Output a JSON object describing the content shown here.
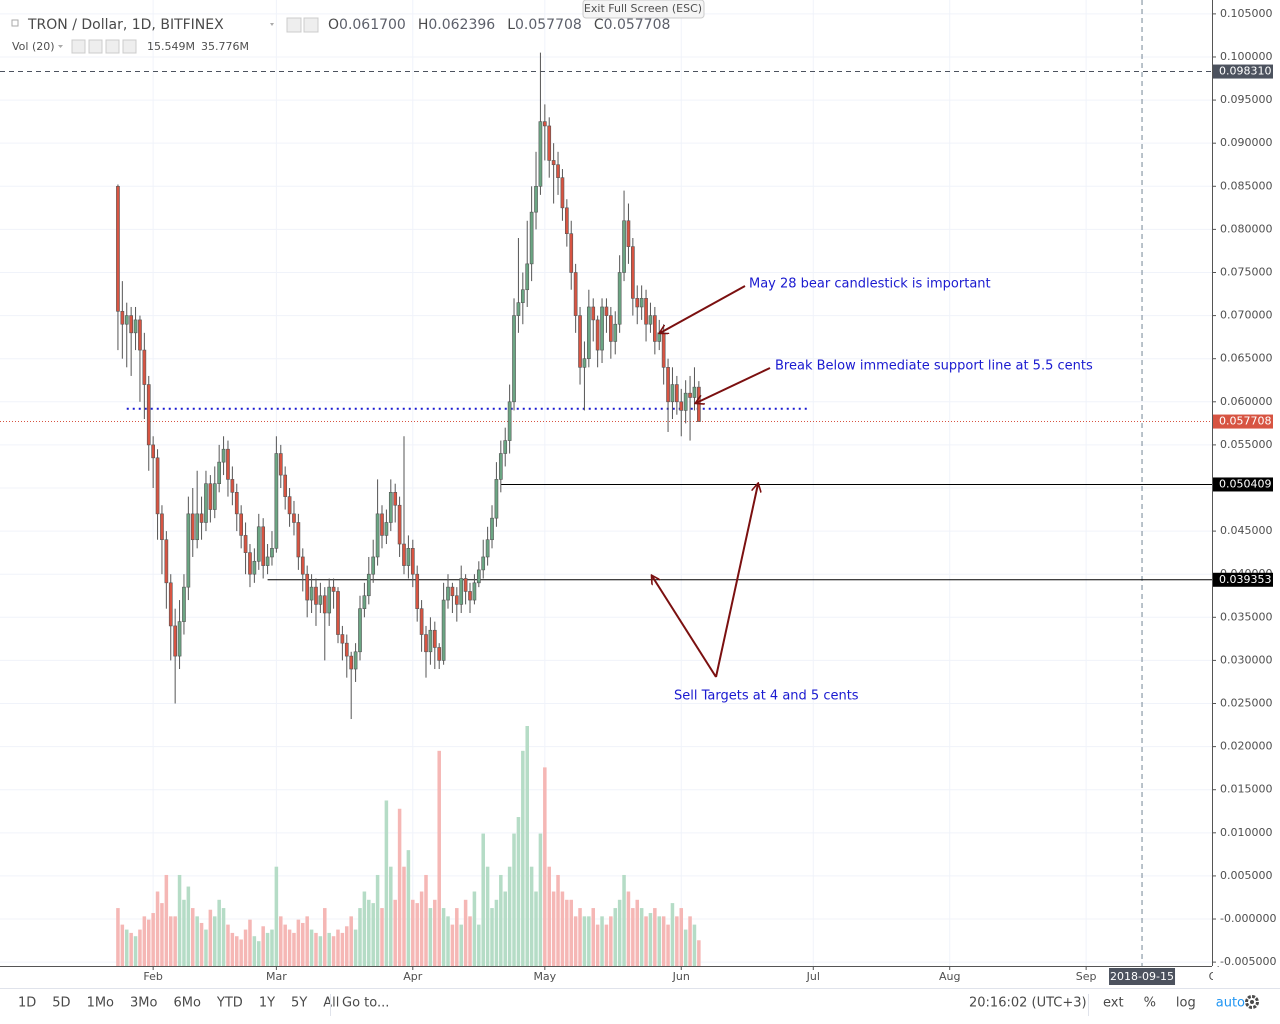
{
  "chart_data": {
    "type": "candlestick",
    "title": "TRON / Dollar, 1D, BITFINEX",
    "ohlc_legend": [
      {
        "label": "O",
        "value": "0.061700"
      },
      {
        "label": "H",
        "value": "0.062396"
      },
      {
        "label": "L",
        "value": "0.057708"
      },
      {
        "label": "C",
        "value": "0.057708"
      }
    ],
    "volume_legend": {
      "label": "Vol (20)",
      "volume": "15.549M",
      "ma": "35.776M"
    },
    "up_color": "#6ba583",
    "down_color": "#d75442",
    "volume_up_color": "#b5dcc6",
    "volume_down_color": "#f5b7b5",
    "open": [
      0.085,
      0.0705,
      0.069,
      0.07,
      0.068,
      0.0695,
      0.066,
      0.062,
      0.055,
      0.0535,
      0.047,
      0.044,
      0.039,
      0.034,
      0.0305,
      0.0345,
      0.0385,
      0.047,
      0.044,
      0.047,
      0.046,
      0.0505,
      0.0475,
      0.0505,
      0.053,
      0.0545,
      0.051,
      0.0495,
      0.047,
      0.0445,
      0.0425,
      0.04,
      0.0415,
      0.0455,
      0.041,
      0.042,
      0.043,
      0.054,
      0.0515,
      0.049,
      0.047,
      0.046,
      0.042,
      0.04,
      0.037,
      0.0385,
      0.0365,
      0.0375,
      0.0355,
      0.0385,
      0.038,
      0.033,
      0.032,
      0.0305,
      0.029,
      0.031,
      0.036,
      0.0375,
      0.04,
      0.042,
      0.047,
      0.0445,
      0.046,
      0.0495,
      0.048,
      0.0435,
      0.041,
      0.043,
      0.04,
      0.036,
      0.033,
      0.031,
      0.0335,
      0.0315,
      0.03,
      0.037,
      0.0385,
      0.0375,
      0.0365,
      0.0395,
      0.038,
      0.037,
      0.039,
      0.0405,
      0.042,
      0.044,
      0.0465,
      0.051,
      0.054,
      0.0555,
      0.06,
      0.07,
      0.0715,
      0.073,
      0.076,
      0.082,
      0.085,
      0.0925,
      0.092,
      0.088,
      0.0875,
      0.086,
      0.0825,
      0.0795,
      0.075,
      0.07,
      0.064,
      0.065,
      0.071,
      0.0695,
      0.066,
      0.071,
      0.07,
      0.067,
      0.069,
      0.075,
      0.081,
      0.078,
      0.072,
      0.071,
      0.072,
      0.069,
      0.07,
      0.067,
      0.068,
      0.064,
      0.06,
      0.062,
      0.06,
      0.059,
      0.061,
      0.0605,
      0.0617
    ],
    "high": [
      0.0852,
      0.074,
      0.0715,
      0.071,
      0.071,
      0.07,
      0.068,
      0.063,
      0.056,
      0.0545,
      0.048,
      0.045,
      0.04,
      0.036,
      0.037,
      0.04,
      0.049,
      0.05,
      0.052,
      0.049,
      0.052,
      0.0515,
      0.0525,
      0.055,
      0.056,
      0.0555,
      0.0525,
      0.0505,
      0.048,
      0.046,
      0.0435,
      0.043,
      0.047,
      0.0465,
      0.0435,
      0.045,
      0.056,
      0.055,
      0.0525,
      0.05,
      0.0485,
      0.047,
      0.043,
      0.041,
      0.04,
      0.0395,
      0.039,
      0.0385,
      0.0395,
      0.0395,
      0.0385,
      0.034,
      0.033,
      0.031,
      0.032,
      0.0375,
      0.039,
      0.042,
      0.044,
      0.051,
      0.048,
      0.0475,
      0.051,
      0.0505,
      0.049,
      0.056,
      0.0445,
      0.044,
      0.041,
      0.037,
      0.034,
      0.035,
      0.0345,
      0.032,
      0.039,
      0.04,
      0.039,
      0.0385,
      0.041,
      0.04,
      0.039,
      0.04,
      0.0415,
      0.044,
      0.0455,
      0.048,
      0.053,
      0.0555,
      0.057,
      0.062,
      0.072,
      0.079,
      0.075,
      0.081,
      0.085,
      0.089,
      0.1005,
      0.0945,
      0.093,
      0.09,
      0.089,
      0.087,
      0.0835,
      0.081,
      0.076,
      0.071,
      0.067,
      0.073,
      0.072,
      0.07,
      0.072,
      0.072,
      0.071,
      0.0705,
      0.077,
      0.0845,
      0.083,
      0.079,
      0.0735,
      0.0735,
      0.073,
      0.0715,
      0.071,
      0.0695,
      0.069,
      0.065,
      0.064,
      0.063,
      0.0615,
      0.0625,
      0.063,
      0.064,
      0.062396
    ],
    "low": [
      0.066,
      0.065,
      0.064,
      0.063,
      0.066,
      0.06,
      0.058,
      0.052,
      0.05,
      0.044,
      0.04,
      0.036,
      0.03,
      0.025,
      0.029,
      0.033,
      0.037,
      0.042,
      0.043,
      0.044,
      0.045,
      0.046,
      0.0465,
      0.0495,
      0.0515,
      0.049,
      0.048,
      0.045,
      0.043,
      0.04,
      0.0385,
      0.039,
      0.0405,
      0.0395,
      0.04,
      0.041,
      0.0425,
      0.05,
      0.0475,
      0.0455,
      0.0445,
      0.0405,
      0.038,
      0.035,
      0.0355,
      0.034,
      0.0355,
      0.03,
      0.034,
      0.036,
      0.032,
      0.03,
      0.028,
      0.0232,
      0.0275,
      0.03,
      0.035,
      0.0365,
      0.039,
      0.041,
      0.043,
      0.0435,
      0.045,
      0.046,
      0.042,
      0.04,
      0.0395,
      0.0385,
      0.0345,
      0.031,
      0.028,
      0.0295,
      0.029,
      0.029,
      0.0295,
      0.036,
      0.0355,
      0.0345,
      0.0355,
      0.0365,
      0.0355,
      0.0365,
      0.0385,
      0.0395,
      0.041,
      0.043,
      0.0455,
      0.0495,
      0.0525,
      0.054,
      0.059,
      0.068,
      0.069,
      0.071,
      0.074,
      0.08,
      0.084,
      0.088,
      0.086,
      0.083,
      0.084,
      0.081,
      0.078,
      0.073,
      0.068,
      0.062,
      0.059,
      0.064,
      0.067,
      0.064,
      0.0645,
      0.068,
      0.065,
      0.0655,
      0.068,
      0.074,
      0.076,
      0.07,
      0.069,
      0.0695,
      0.067,
      0.068,
      0.0655,
      0.066,
      0.062,
      0.0565,
      0.058,
      0.0585,
      0.056,
      0.0575,
      0.0555,
      0.059,
      0.057708
    ],
    "close": [
      0.0705,
      0.069,
      0.07,
      0.068,
      0.0695,
      0.066,
      0.062,
      0.055,
      0.0535,
      0.047,
      0.044,
      0.039,
      0.034,
      0.0305,
      0.0345,
      0.0385,
      0.047,
      0.044,
      0.047,
      0.046,
      0.0505,
      0.0475,
      0.0505,
      0.053,
      0.0545,
      0.051,
      0.0495,
      0.047,
      0.0445,
      0.0425,
      0.04,
      0.0415,
      0.0455,
      0.041,
      0.042,
      0.043,
      0.054,
      0.0515,
      0.049,
      0.047,
      0.046,
      0.042,
      0.04,
      0.037,
      0.0385,
      0.0365,
      0.0375,
      0.0355,
      0.0385,
      0.038,
      0.033,
      0.032,
      0.0305,
      0.029,
      0.031,
      0.036,
      0.0375,
      0.04,
      0.042,
      0.047,
      0.0445,
      0.046,
      0.0495,
      0.048,
      0.0435,
      0.041,
      0.043,
      0.04,
      0.036,
      0.033,
      0.031,
      0.0335,
      0.0315,
      0.03,
      0.037,
      0.0385,
      0.0375,
      0.0365,
      0.0395,
      0.038,
      0.037,
      0.039,
      0.0405,
      0.042,
      0.044,
      0.0465,
      0.051,
      0.054,
      0.0555,
      0.06,
      0.07,
      0.0715,
      0.073,
      0.076,
      0.082,
      0.085,
      0.0925,
      0.092,
      0.088,
      0.0875,
      0.086,
      0.0825,
      0.0795,
      0.075,
      0.07,
      0.064,
      0.065,
      0.071,
      0.0695,
      0.066,
      0.071,
      0.07,
      0.067,
      0.069,
      0.075,
      0.081,
      0.078,
      0.072,
      0.071,
      0.072,
      0.069,
      0.07,
      0.067,
      0.068,
      0.064,
      0.06,
      0.062,
      0.06,
      0.059,
      0.061,
      0.0605,
      0.0617,
      0.057708
    ],
    "volume": [
      35,
      25,
      22,
      20,
      18,
      22,
      30,
      28,
      32,
      45,
      38,
      55,
      30,
      30,
      55,
      40,
      48,
      35,
      30,
      26,
      22,
      34,
      30,
      40,
      35,
      25,
      20,
      18,
      16,
      22,
      28,
      18,
      15,
      24,
      20,
      22,
      60,
      30,
      25,
      22,
      20,
      28,
      26,
      30,
      22,
      20,
      18,
      35,
      20,
      18,
      22,
      20,
      24,
      30,
      22,
      35,
      45,
      40,
      38,
      55,
      35,
      100,
      60,
      40,
      95,
      60,
      70,
      40,
      38,
      45,
      55,
      35,
      40,
      130,
      35,
      30,
      25,
      35,
      25,
      40,
      30,
      45,
      25,
      80,
      60,
      35,
      40,
      55,
      45,
      60,
      80,
      90,
      130,
      145,
      60,
      45,
      80,
      120,
      60,
      45,
      55,
      45,
      40,
      40,
      30,
      35,
      30,
      30,
      35,
      25,
      30,
      25,
      30,
      35,
      40,
      55,
      45,
      35,
      40,
      35,
      30,
      32,
      35,
      30,
      30,
      25,
      38,
      30,
      35,
      22,
      30,
      25,
      15.549
    ],
    "xlim": [
      -26.8,
      248.6
    ],
    "xticks": [
      {
        "value": 8,
        "label": "Feb"
      },
      {
        "value": 36,
        "label": "Mar"
      },
      {
        "value": 67,
        "label": "Apr"
      },
      {
        "value": 97,
        "label": "May"
      },
      {
        "value": 128,
        "label": "Jun"
      },
      {
        "value": 158,
        "label": "Jul"
      },
      {
        "value": 189,
        "label": "Aug"
      },
      {
        "value": 220,
        "label": "Sep"
      },
      {
        "value": 250,
        "label": "Oct"
      }
    ],
    "ylim": [
      -0.00545,
      0.10661
    ],
    "yticks": [
      {
        "value": 0.105,
        "label": "0.105000"
      },
      {
        "value": 0.1,
        "label": "0.100000"
      },
      {
        "value": 0.095,
        "label": "0.095000"
      },
      {
        "value": 0.09,
        "label": "0.090000"
      },
      {
        "value": 0.085,
        "label": "0.085000"
      },
      {
        "value": 0.08,
        "label": "0.080000"
      },
      {
        "value": 0.075,
        "label": "0.075000"
      },
      {
        "value": 0.07,
        "label": "0.070000"
      },
      {
        "value": 0.065,
        "label": "0.065000"
      },
      {
        "value": 0.06,
        "label": "0.060000"
      },
      {
        "value": 0.055,
        "label": "0.055000"
      },
      {
        "value": 0.05,
        "label": "0.050000"
      },
      {
        "value": 0.045,
        "label": "0.045000"
      },
      {
        "value": 0.04,
        "label": "0.040000"
      },
      {
        "value": 0.035,
        "label": "0.035000"
      },
      {
        "value": 0.03,
        "label": "0.030000"
      },
      {
        "value": 0.025,
        "label": "0.025000"
      },
      {
        "value": 0.02,
        "label": "0.020000"
      },
      {
        "value": 0.015,
        "label": "0.015000"
      },
      {
        "value": 0.01,
        "label": "0.010000"
      },
      {
        "value": 0.005,
        "label": "0.005000"
      },
      {
        "value": 0,
        "label": "-0.000000"
      },
      {
        "value": -0.005,
        "label": "-0.005000"
      }
    ],
    "grid": true,
    "levels": [
      {
        "value": 0.09831,
        "label": "0.098310",
        "color": "#4c525e",
        "from": -26.8,
        "style": "dashed"
      },
      {
        "value": 0.057708,
        "label": "0.057708",
        "color": "#d75442",
        "from": -26.8,
        "style": "dotted"
      },
      {
        "value": 0.050409,
        "label": "0.050409",
        "color": "#000000",
        "from": 87,
        "style": "solid"
      },
      {
        "value": 0.039353,
        "label": "0.039353",
        "color": "#000000",
        "from": 34,
        "style": "solid"
      }
    ],
    "support_line": {
      "value": 0.0592,
      "from": 2,
      "to": 157,
      "color": "#1a1ad0"
    },
    "crosshair": {
      "x": 232.7,
      "label": "2018-09-15"
    },
    "annotations": [
      "May 28 bear candlestick is important",
      "Break Below immediate support line at 5.5 cents",
      "Sell Targets at 4 and 5 cents"
    ]
  },
  "ui": {
    "exit_fullscreen": "Exit Full Screen (ESC)",
    "ranges": [
      "1D",
      "5D",
      "1Mo",
      "3Mo",
      "6Mo",
      "YTD",
      "1Y",
      "5Y",
      "All"
    ],
    "goto": "Go to...",
    "clock": "20:16:02 (UTC+3)",
    "options": [
      "ext",
      "%",
      "log",
      "auto"
    ]
  }
}
